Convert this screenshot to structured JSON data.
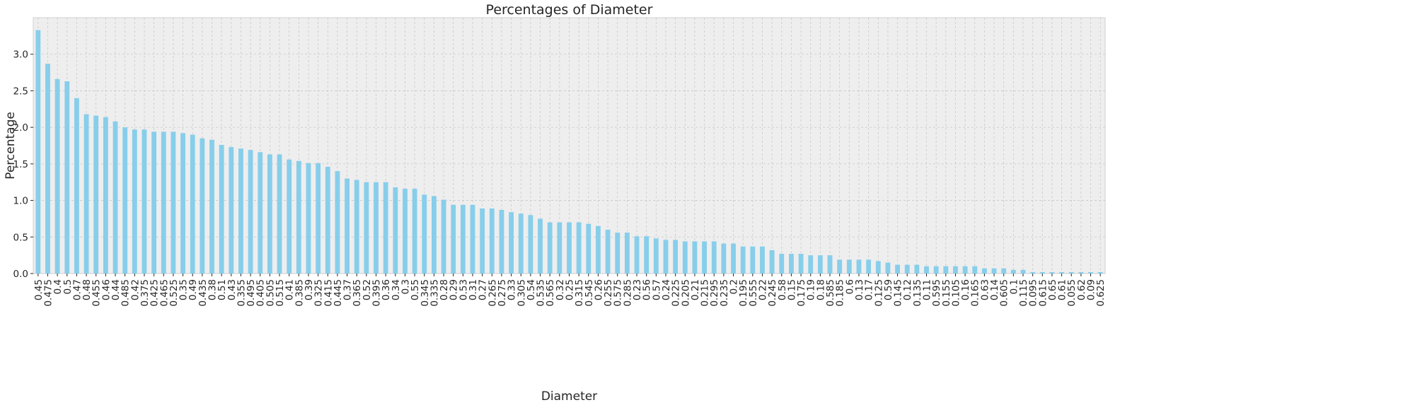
{
  "chart_data": {
    "type": "bar",
    "title": "Percentages of Diameter",
    "xlabel": "Diameter",
    "ylabel": "Percentage",
    "ylim": [
      0,
      3.5
    ],
    "yticks": [
      0.0,
      0.5,
      1.0,
      1.5,
      2.0,
      2.5,
      3.0
    ],
    "grid": true,
    "bar_color": "#87CEEB",
    "background_color": "#EEEEEE",
    "categories": [
      "0.45",
      "0.475",
      "0.4",
      "0.5",
      "0.47",
      "0.48",
      "0.455",
      "0.46",
      "0.44",
      "0.485",
      "0.42",
      "0.375",
      "0.425",
      "0.465",
      "0.525",
      "0.35",
      "0.49",
      "0.435",
      "0.38",
      "0.51",
      "0.43",
      "0.355",
      "0.495",
      "0.405",
      "0.505",
      "0.515",
      "0.41",
      "0.385",
      "0.39",
      "0.325",
      "0.415",
      "0.445",
      "0.37",
      "0.365",
      "0.52",
      "0.395",
      "0.36",
      "0.34",
      "0.3",
      "0.55",
      "0.345",
      "0.335",
      "0.28",
      "0.29",
      "0.53",
      "0.31",
      "0.27",
      "0.265",
      "0.275",
      "0.33",
      "0.305",
      "0.54",
      "0.535",
      "0.565",
      "0.32",
      "0.25",
      "0.315",
      "0.545",
      "0.26",
      "0.255",
      "0.575",
      "0.285",
      "0.23",
      "0.56",
      "0.57",
      "0.24",
      "0.225",
      "0.205",
      "0.21",
      "0.215",
      "0.295",
      "0.235",
      "0.2",
      "0.195",
      "0.555",
      "0.22",
      "0.245",
      "0.58",
      "0.15",
      "0.175",
      "0.19",
      "0.18",
      "0.585",
      "0.185",
      "0.6",
      "0.13",
      "0.17",
      "0.125",
      "0.59",
      "0.145",
      "0.12",
      "0.135",
      "0.11",
      "0.595",
      "0.155",
      "0.105",
      "0.16",
      "0.165",
      "0.63",
      "0.14",
      "0.605",
      "0.1",
      "0.115",
      "0.095",
      "0.615",
      "0.65",
      "0.61",
      "0.055",
      "0.62",
      "0.09",
      "0.625"
    ],
    "values": [
      3.33,
      2.87,
      2.66,
      2.63,
      2.4,
      2.18,
      2.16,
      2.14,
      2.08,
      2.0,
      1.97,
      1.97,
      1.94,
      1.94,
      1.94,
      1.92,
      1.9,
      1.85,
      1.83,
      1.76,
      1.73,
      1.71,
      1.69,
      1.66,
      1.63,
      1.63,
      1.56,
      1.54,
      1.51,
      1.51,
      1.46,
      1.4,
      1.3,
      1.28,
      1.25,
      1.25,
      1.25,
      1.18,
      1.16,
      1.16,
      1.08,
      1.06,
      1.01,
      0.94,
      0.94,
      0.94,
      0.89,
      0.89,
      0.87,
      0.84,
      0.82,
      0.8,
      0.75,
      0.7,
      0.7,
      0.7,
      0.7,
      0.68,
      0.65,
      0.6,
      0.56,
      0.56,
      0.51,
      0.51,
      0.48,
      0.46,
      0.46,
      0.44,
      0.44,
      0.44,
      0.44,
      0.41,
      0.41,
      0.37,
      0.37,
      0.37,
      0.32,
      0.27,
      0.27,
      0.27,
      0.25,
      0.25,
      0.25,
      0.19,
      0.19,
      0.19,
      0.19,
      0.17,
      0.15,
      0.12,
      0.12,
      0.12,
      0.1,
      0.1,
      0.1,
      0.1,
      0.1,
      0.1,
      0.07,
      0.07,
      0.07,
      0.05,
      0.05,
      0.02,
      0.02,
      0.02,
      0.02,
      0.02,
      0.02,
      0.02,
      0.02
    ]
  }
}
